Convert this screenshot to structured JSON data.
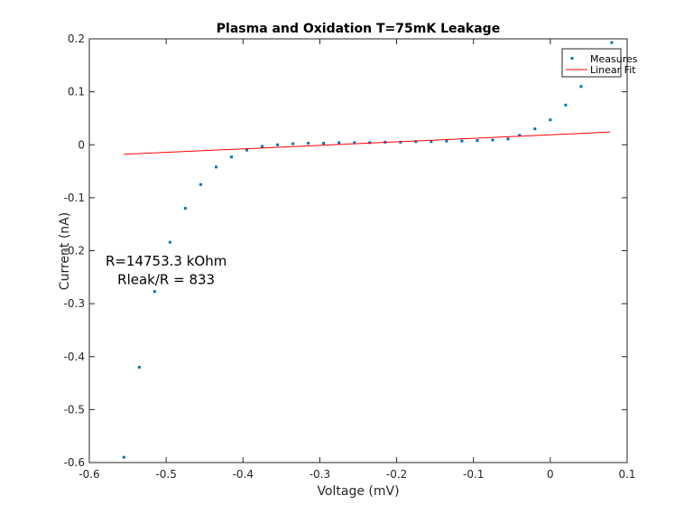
{
  "chart_data": {
    "type": "scatter",
    "title": "Plasma and Oxidation T=75mK Leakage",
    "xlabel": "Voltage (mV)",
    "ylabel": "Current (nA)",
    "xlim": [
      -0.6,
      0.1
    ],
    "ylim": [
      -0.6,
      0.2
    ],
    "xticks": [
      -0.6,
      -0.5,
      -0.4,
      -0.3,
      -0.2,
      -0.1,
      0,
      0.1
    ],
    "xtick_labels": [
      "-0.6",
      "-0.5",
      "-0.4",
      "-0.3",
      "-0.2",
      "-0.1",
      "0",
      "0.1"
    ],
    "yticks": [
      -0.6,
      -0.5,
      -0.4,
      -0.3,
      -0.2,
      -0.1,
      0,
      0.1,
      0.2
    ],
    "ytick_labels": [
      "-0.6",
      "-0.5",
      "-0.4",
      "-0.3",
      "-0.2",
      "-0.1",
      "0",
      "0.1",
      "0.2"
    ],
    "grid": false,
    "legend_position": "top-right",
    "series": [
      {
        "name": "Measures",
        "kind": "scatter",
        "color": "#0072BD",
        "x": [
          -0.555,
          -0.535,
          -0.515,
          -0.495,
          -0.475,
          -0.455,
          -0.435,
          -0.415,
          -0.395,
          -0.375,
          -0.355,
          -0.335,
          -0.315,
          -0.295,
          -0.275,
          -0.255,
          -0.235,
          -0.215,
          -0.195,
          -0.175,
          -0.155,
          -0.135,
          -0.115,
          -0.095,
          -0.075,
          -0.055,
          -0.04,
          -0.02,
          0,
          0.02,
          0.04,
          0.08
        ],
        "y": [
          -0.59,
          -0.42,
          -0.277,
          -0.184,
          -0.12,
          -0.075,
          -0.042,
          -0.023,
          -0.01,
          -0.003,
          0.0,
          0.002,
          0.003,
          0.003,
          0.004,
          0.004,
          0.004,
          0.005,
          0.005,
          0.006,
          0.006,
          0.007,
          0.007,
          0.008,
          0.009,
          0.011,
          0.018,
          0.03,
          0.047,
          0.075,
          0.11,
          0.193
        ]
      },
      {
        "name": "Linear Fit",
        "kind": "line",
        "color": "#FF0000",
        "x": [
          -0.555,
          0.078
        ],
        "y": [
          -0.018,
          0.024
        ]
      }
    ],
    "annotations": [
      {
        "text": "R=14753.3 kOhm",
        "x": -0.5,
        "y": -0.228
      },
      {
        "text": "Rleak/R = 833",
        "x": -0.5,
        "y": -0.263
      }
    ]
  }
}
